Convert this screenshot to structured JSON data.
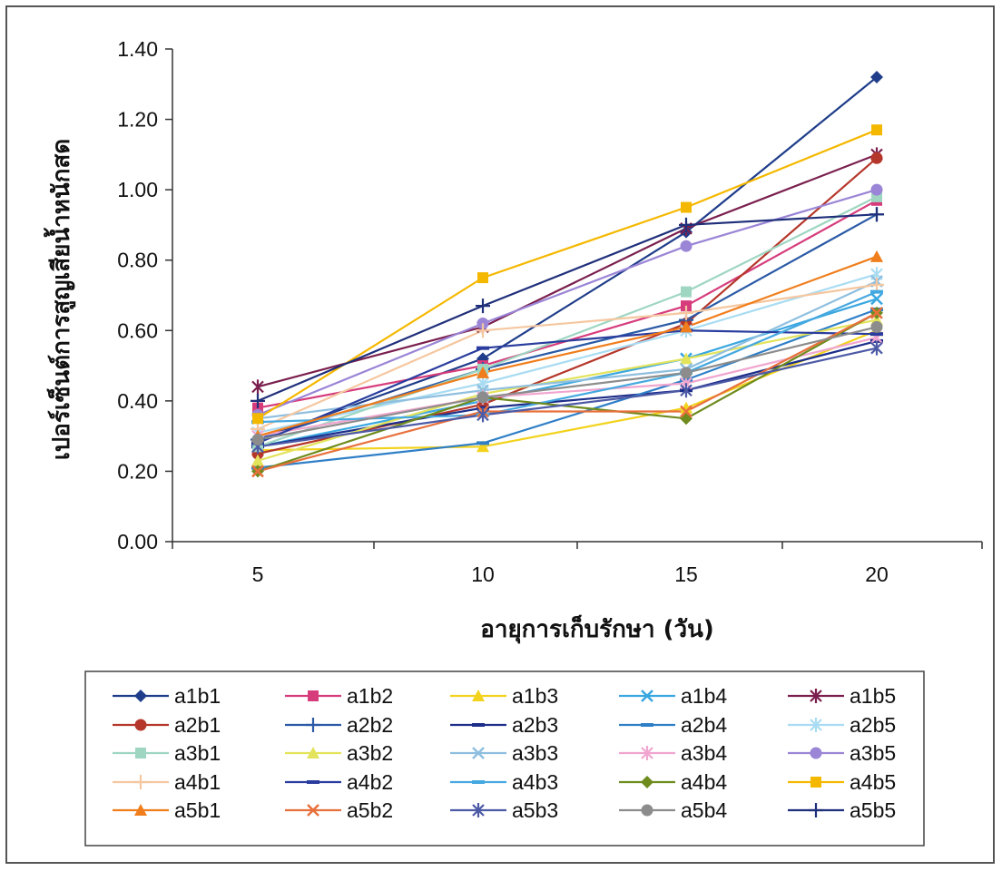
{
  "chart_data": {
    "type": "line",
    "title": "",
    "xlabel": "อายุการเก็บรักษา (วัน)",
    "ylabel": "เปอร์เซ็นต์การสูญเสียน้ำหนักสด",
    "x": [
      5,
      10,
      15,
      20
    ],
    "x_tick_labels": [
      "5",
      "10",
      "15",
      "20"
    ],
    "ylim": [
      0,
      1.4
    ],
    "y_ticks": [
      "0.00",
      "0.20",
      "0.40",
      "0.60",
      "0.80",
      "1.00",
      "1.20",
      "1.40"
    ],
    "grid": false,
    "legend_placement": "bottom",
    "series": [
      {
        "name": "a1b1",
        "color": "#1f3d8a",
        "marker": "diamond",
        "values": [
          0.29,
          0.52,
          0.88,
          1.32
        ]
      },
      {
        "name": "a1b2",
        "color": "#d63c7c",
        "marker": "square",
        "values": [
          0.38,
          0.5,
          0.67,
          0.97
        ]
      },
      {
        "name": "a1b3",
        "color": "#f2d21c",
        "marker": "triangle",
        "values": [
          0.26,
          0.27,
          0.38,
          0.6
        ]
      },
      {
        "name": "a1b4",
        "color": "#3aa7e0",
        "marker": "x",
        "values": [
          0.27,
          0.4,
          0.52,
          0.69
        ]
      },
      {
        "name": "a1b5",
        "color": "#7a1f4e",
        "marker": "star",
        "values": [
          0.44,
          0.61,
          0.89,
          1.1
        ]
      },
      {
        "name": "a2b1",
        "color": "#b5362a",
        "marker": "circle",
        "values": [
          0.25,
          0.39,
          0.62,
          1.09
        ]
      },
      {
        "name": "a2b2",
        "color": "#2a5aa6",
        "marker": "plus",
        "values": [
          0.29,
          0.49,
          0.63,
          0.93
        ]
      },
      {
        "name": "a2b3",
        "color": "#1d2e8a",
        "marker": "dash",
        "values": [
          0.27,
          0.38,
          0.43,
          0.57
        ]
      },
      {
        "name": "a2b4",
        "color": "#2f7fc7",
        "marker": "dash",
        "values": [
          0.21,
          0.28,
          0.46,
          0.66
        ]
      },
      {
        "name": "a2b5",
        "color": "#a9dcf2",
        "marker": "star",
        "values": [
          0.31,
          0.45,
          0.6,
          0.76
        ]
      },
      {
        "name": "a3b1",
        "color": "#9fd6c2",
        "marker": "square",
        "values": [
          0.27,
          0.49,
          0.71,
          0.98
        ]
      },
      {
        "name": "a3b2",
        "color": "#e3e35c",
        "marker": "triangle",
        "values": [
          0.23,
          0.42,
          0.52,
          0.63
        ]
      },
      {
        "name": "a3b3",
        "color": "#8fbfdf",
        "marker": "x",
        "values": [
          0.35,
          0.43,
          0.49,
          0.74
        ]
      },
      {
        "name": "a3b4",
        "color": "#f0a6cf",
        "marker": "star",
        "values": [
          0.3,
          0.41,
          0.45,
          0.58
        ]
      },
      {
        "name": "a3b5",
        "color": "#9a85d6",
        "marker": "circle",
        "values": [
          0.36,
          0.62,
          0.84,
          1.0
        ]
      },
      {
        "name": "a4b1",
        "color": "#f5c7a0",
        "marker": "plus",
        "values": [
          0.32,
          0.6,
          0.65,
          0.73
        ]
      },
      {
        "name": "a4b2",
        "color": "#2a3d9e",
        "marker": "dash",
        "values": [
          0.28,
          0.55,
          0.6,
          0.59
        ]
      },
      {
        "name": "a4b3",
        "color": "#45a8e0",
        "marker": "dash",
        "values": [
          0.34,
          0.36,
          0.48,
          0.71
        ]
      },
      {
        "name": "a4b4",
        "color": "#6e8b1e",
        "marker": "diamond",
        "values": [
          0.2,
          0.41,
          0.35,
          0.65
        ]
      },
      {
        "name": "a4b5",
        "color": "#f5b800",
        "marker": "square",
        "values": [
          0.35,
          0.75,
          0.95,
          1.17
        ]
      },
      {
        "name": "a5b1",
        "color": "#f07e1c",
        "marker": "triangle",
        "values": [
          0.3,
          0.48,
          0.61,
          0.81
        ]
      },
      {
        "name": "a5b2",
        "color": "#e8703c",
        "marker": "x",
        "values": [
          0.2,
          0.37,
          0.37,
          0.65
        ]
      },
      {
        "name": "a5b3",
        "color": "#4d5aa6",
        "marker": "star",
        "values": [
          0.27,
          0.36,
          0.43,
          0.55
        ]
      },
      {
        "name": "a5b4",
        "color": "#8c8c8c",
        "marker": "circle",
        "values": [
          0.29,
          0.41,
          0.48,
          0.61
        ]
      },
      {
        "name": "a5b5",
        "color": "#1f2f7a",
        "marker": "plus",
        "values": [
          0.4,
          0.67,
          0.9,
          0.93
        ]
      }
    ]
  }
}
